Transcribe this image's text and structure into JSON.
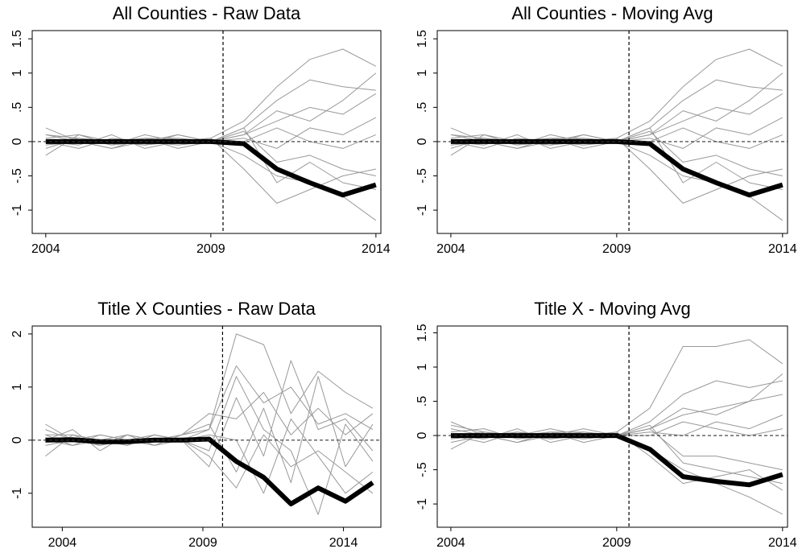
{
  "chart_data": [
    {
      "type": "line",
      "title": "All Counties - Raw Data",
      "x": [
        2004,
        2005,
        2006,
        2007,
        2008,
        2009,
        2010,
        2011,
        2012,
        2013,
        2014
      ],
      "xlim": [
        2003.59,
        2014.15
      ],
      "xticks": [
        2004,
        2009,
        2014
      ],
      "ylim": [
        -1.34,
        1.62
      ],
      "yticks": [
        1.5,
        1,
        {
          "value": 0.5,
          "label": ".5"
        },
        0,
        {
          "value": -0.5,
          "label": "-.5"
        },
        -1
      ],
      "vline": 2009.37,
      "hline": 0,
      "series": [
        {
          "color": "#999999",
          "values": [
            0.1,
            0.05,
            -0.05,
            0.1,
            0,
            0.05,
            0.3,
            0.8,
            1.2,
            1.35,
            1.1
          ]
        },
        {
          "color": "#999999",
          "values": [
            -0.1,
            0.05,
            0,
            -0.05,
            0.1,
            0,
            0.2,
            0.6,
            0.9,
            0.8,
            0.75
          ]
        },
        {
          "color": "#999999",
          "values": [
            0.2,
            0,
            -0.1,
            0.05,
            0,
            0.05,
            -0.4,
            -0.9,
            -0.7,
            -0.5,
            -0.4
          ]
        },
        {
          "color": "#999999",
          "values": [
            0,
            -0.1,
            0.05,
            0,
            -0.05,
            0,
            0.1,
            0.3,
            0.5,
            0.4,
            0.7
          ]
        },
        {
          "color": "#999999",
          "values": [
            -0.2,
            0.1,
            0,
            0.05,
            -0.1,
            0,
            -0.2,
            -0.5,
            -0.6,
            -0.8,
            -1.15
          ]
        },
        {
          "color": "#999999",
          "values": [
            0.05,
            0.1,
            -0.05,
            0,
            0.1,
            0,
            0.05,
            -0.1,
            0.2,
            0.1,
            0.35
          ]
        },
        {
          "color": "#999999",
          "values": [
            0,
            -0.05,
            0.1,
            -0.1,
            0,
            0,
            0.15,
            -0.3,
            -0.2,
            -0.4,
            -0.5
          ]
        },
        {
          "color": "#999999",
          "values": [
            0.1,
            0,
            0,
            0.05,
            0.05,
            0,
            0.1,
            0.45,
            0.3,
            0.6,
            1.0
          ]
        },
        {
          "color": "#999999",
          "values": [
            -0.05,
            0,
            -0.1,
            0,
            0.05,
            0,
            0.2,
            -0.6,
            -0.3,
            -0.6,
            -0.7
          ]
        },
        {
          "color": "#999999",
          "values": [
            0,
            0.05,
            0,
            -0.05,
            0,
            0,
            0,
            0.2,
            0,
            -0.1,
            0.1
          ]
        },
        {
          "color": "#000000",
          "linewidth": 6,
          "values": [
            0,
            0,
            0,
            0,
            0,
            0,
            -0.03,
            -0.4,
            -0.6,
            -0.78,
            -0.63
          ]
        }
      ]
    },
    {
      "type": "line",
      "title": "All Counties - Moving Avg",
      "x": [
        2004,
        2005,
        2006,
        2007,
        2008,
        2009,
        2010,
        2011,
        2012,
        2013,
        2014
      ],
      "xlim": [
        2003.59,
        2014.15
      ],
      "xticks": [
        2004,
        2009,
        2014
      ],
      "ylim": [
        -1.34,
        1.62
      ],
      "yticks": [
        1.5,
        1,
        {
          "value": 0.5,
          "label": ".5"
        },
        0,
        {
          "value": -0.5,
          "label": "-.5"
        },
        -1
      ],
      "vline": 2009.37,
      "hline": 0,
      "series": [
        {
          "color": "#999999",
          "values": [
            0.1,
            0.05,
            -0.05,
            0.1,
            0,
            0.05,
            0.3,
            0.8,
            1.2,
            1.35,
            1.1
          ]
        },
        {
          "color": "#999999",
          "values": [
            -0.1,
            0.05,
            0,
            -0.05,
            0.1,
            0,
            0.2,
            0.6,
            0.9,
            0.8,
            0.75
          ]
        },
        {
          "color": "#999999",
          "values": [
            0.2,
            0,
            -0.1,
            0.05,
            0,
            0.05,
            -0.4,
            -0.9,
            -0.7,
            -0.5,
            -0.4
          ]
        },
        {
          "color": "#999999",
          "values": [
            0,
            -0.1,
            0.05,
            0,
            -0.05,
            0,
            0.1,
            0.3,
            0.5,
            0.4,
            0.7
          ]
        },
        {
          "color": "#999999",
          "values": [
            -0.2,
            0.1,
            0,
            0.05,
            -0.1,
            0,
            -0.2,
            -0.5,
            -0.6,
            -0.8,
            -1.15
          ]
        },
        {
          "color": "#999999",
          "values": [
            0.05,
            0.1,
            -0.05,
            0,
            0.1,
            0,
            0.05,
            -0.1,
            0.2,
            0.1,
            0.35
          ]
        },
        {
          "color": "#999999",
          "values": [
            0,
            -0.05,
            0.1,
            -0.1,
            0,
            0,
            0.15,
            -0.3,
            -0.2,
            -0.4,
            -0.5
          ]
        },
        {
          "color": "#999999",
          "values": [
            0.1,
            0,
            0,
            0.05,
            0.05,
            0,
            0.1,
            0.45,
            0.3,
            0.6,
            1.0
          ]
        },
        {
          "color": "#999999",
          "values": [
            -0.05,
            0,
            -0.1,
            0,
            0.05,
            0,
            0.2,
            -0.6,
            -0.3,
            -0.6,
            -0.7
          ]
        },
        {
          "color": "#999999",
          "values": [
            0,
            0.05,
            0,
            -0.05,
            0,
            0,
            0,
            0.2,
            0,
            -0.1,
            0.1
          ]
        },
        {
          "color": "#000000",
          "linewidth": 6,
          "values": [
            0,
            0,
            0,
            0,
            0,
            0,
            -0.03,
            -0.4,
            -0.6,
            -0.78,
            -0.63
          ]
        }
      ]
    },
    {
      "type": "line",
      "title": "Title X Counties - Raw Data",
      "x": [
        2003.4,
        2004.37,
        2005.34,
        2006.31,
        2007.28,
        2008.25,
        2009.22,
        2010.19,
        2011.16,
        2012.13,
        2013.1,
        2014.07,
        2015.04
      ],
      "xlim": [
        2002.93,
        2015.33
      ],
      "xticks": [
        2004,
        2009,
        2014
      ],
      "ylim": [
        -1.64,
        2.15
      ],
      "yticks": [
        2,
        1,
        0,
        -1
      ],
      "vline": 2009.7,
      "hline": 0,
      "series": [
        {
          "color": "#999999",
          "values": [
            0.3,
            0,
            -0.1,
            0.1,
            0,
            0.1,
            0.2,
            2.0,
            1.8,
            0.5,
            1.3,
            0.9,
            0.6
          ]
        },
        {
          "color": "#999999",
          "values": [
            -0.3,
            0.1,
            0,
            -0.1,
            0.1,
            0,
            -0.5,
            0.8,
            -0.3,
            1.5,
            0.2,
            0.4,
            -0.2
          ]
        },
        {
          "color": "#999999",
          "values": [
            0.1,
            -0.1,
            0.1,
            0,
            -0.1,
            0.1,
            0.3,
            -0.6,
            0.6,
            -0.8,
            1.2,
            -0.5,
            0.3
          ]
        },
        {
          "color": "#999999",
          "values": [
            0,
            0.2,
            -0.2,
            0.1,
            0,
            0,
            -0.2,
            1.2,
            0.2,
            -0.2,
            -1.4,
            0.3,
            -0.4
          ]
        },
        {
          "color": "#999999",
          "values": [
            0.2,
            0,
            0,
            -0.1,
            0.1,
            0,
            0.1,
            0,
            -1.0,
            0.4,
            -0.3,
            -1.0,
            -0.6
          ]
        },
        {
          "color": "#999999",
          "values": [
            -0.1,
            0,
            0.1,
            0,
            0,
            0.1,
            0.5,
            0.4,
            0.9,
            0.1,
            0.6,
            0.1,
            0.5
          ]
        },
        {
          "color": "#999999",
          "values": [
            0,
            -0.1,
            0,
            0.1,
            -0.1,
            0,
            -0.3,
            -0.9,
            0.1,
            -0.5,
            -0.2,
            -0.6,
            -1.0
          ]
        },
        {
          "color": "#999999",
          "values": [
            0.1,
            0.1,
            -0.1,
            0,
            0.1,
            0,
            0.2,
            1.4,
            0.7,
            1.0,
            0.3,
            0.5,
            0.2
          ]
        },
        {
          "color": "#000000",
          "linewidth": 6,
          "values": [
            0,
            0.01,
            -0.03,
            -0.03,
            0,
            0,
            0.02,
            -0.4,
            -0.7,
            -1.2,
            -0.9,
            -1.15,
            -0.8
          ]
        }
      ]
    },
    {
      "type": "line",
      "title": "Title X - Moving Avg",
      "x": [
        2004,
        2005,
        2006,
        2007,
        2008,
        2009,
        2010,
        2011,
        2012,
        2013,
        2014
      ],
      "xlim": [
        2003.59,
        2014.15
      ],
      "xticks": [
        2004,
        2009,
        2014
      ],
      "ylim": [
        -1.34,
        1.6
      ],
      "yticks": [
        1.5,
        1,
        {
          "value": 0.5,
          "label": ".5"
        },
        0,
        {
          "value": -0.5,
          "label": "-.5"
        },
        -1
      ],
      "vline": 2009.37,
      "hline": 0,
      "series": [
        {
          "color": "#999999",
          "values": [
            0.15,
            0.05,
            0,
            0.1,
            0,
            0.05,
            0.4,
            1.3,
            1.3,
            1.4,
            1.05
          ]
        },
        {
          "color": "#999999",
          "values": [
            -0.1,
            0,
            0.05,
            -0.05,
            0.05,
            0,
            0.2,
            0.6,
            0.8,
            0.7,
            0.8
          ]
        },
        {
          "color": "#999999",
          "values": [
            0.2,
            0,
            -0.1,
            0.05,
            0,
            0.05,
            -0.3,
            -0.7,
            -0.6,
            -0.5,
            -0.8
          ]
        },
        {
          "color": "#999999",
          "values": [
            0,
            -0.1,
            0.05,
            0,
            -0.05,
            0,
            0.1,
            0.3,
            0.4,
            0.5,
            0.6
          ]
        },
        {
          "color": "#999999",
          "values": [
            -0.2,
            0.05,
            0,
            0.05,
            -0.1,
            0,
            -0.2,
            -0.5,
            -0.7,
            -0.9,
            -1.15
          ]
        },
        {
          "color": "#999999",
          "values": [
            0.05,
            0.1,
            -0.05,
            0,
            0.1,
            0,
            0.05,
            0,
            0.2,
            0.1,
            0.3
          ]
        },
        {
          "color": "#999999",
          "values": [
            0,
            -0.05,
            0.1,
            -0.1,
            0,
            0,
            0.1,
            -0.3,
            -0.3,
            -0.4,
            -0.5
          ]
        },
        {
          "color": "#999999",
          "values": [
            0.1,
            0,
            0,
            0.05,
            0.05,
            0,
            0.1,
            0.4,
            0.3,
            0.5,
            0.9
          ]
        },
        {
          "color": "#999999",
          "values": [
            -0.05,
            0,
            -0.1,
            0,
            0.05,
            0,
            0.15,
            -0.4,
            -0.5,
            -0.6,
            -0.7
          ]
        },
        {
          "color": "#999999",
          "values": [
            0,
            0.05,
            0,
            -0.05,
            0,
            0,
            0,
            0.2,
            0.1,
            0,
            0.1
          ]
        },
        {
          "color": "#000000",
          "linewidth": 6,
          "values": [
            0,
            0,
            0,
            0,
            0,
            0,
            -0.2,
            -0.6,
            -0.67,
            -0.72,
            -0.57
          ]
        }
      ]
    }
  ]
}
